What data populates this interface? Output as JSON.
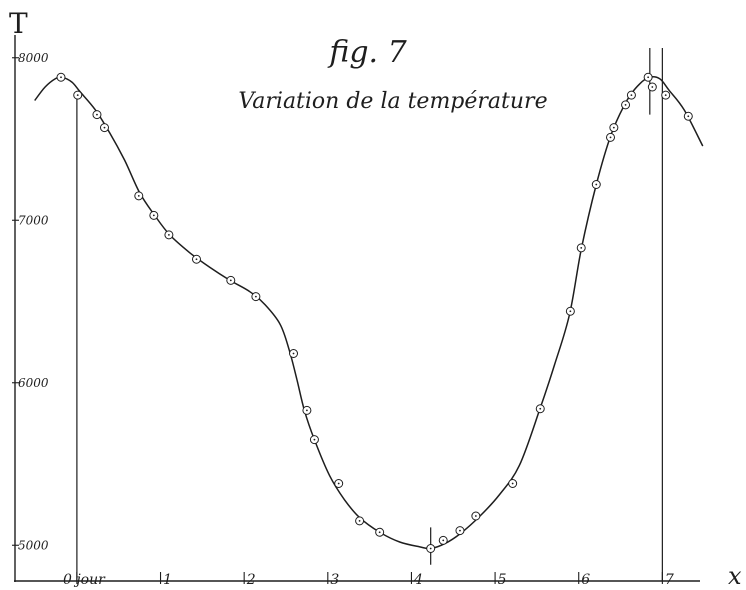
{
  "chart_data": {
    "type": "line",
    "title": "fig. 7",
    "subtitle": "Variation de la température",
    "ylabel": "T",
    "xlabel": "x",
    "xlim": [
      -0.74,
      7.45
    ],
    "ylim": [
      4780,
      8140
    ],
    "grid": false,
    "x_ticks": [
      {
        "value": 0,
        "label": "0 jour"
      },
      {
        "value": 1,
        "label": "1"
      },
      {
        "value": 2,
        "label": "2"
      },
      {
        "value": 3,
        "label": "3"
      },
      {
        "value": 4,
        "label": "4"
      },
      {
        "value": 5,
        "label": "5"
      },
      {
        "value": 6,
        "label": "6"
      },
      {
        "value": 7,
        "label": "7"
      }
    ],
    "y_ticks": [
      {
        "value": 5000,
        "label": "5000"
      },
      {
        "value": 6000,
        "label": "6000"
      },
      {
        "value": 7000,
        "label": "7000"
      },
      {
        "value": 8000,
        "label": "8000"
      }
    ],
    "points": [
      [
        -0.19,
        7880
      ],
      [
        0.01,
        7770
      ],
      [
        0.24,
        7650
      ],
      [
        0.33,
        7570
      ],
      [
        0.74,
        7150
      ],
      [
        0.92,
        7030
      ],
      [
        1.1,
        6910
      ],
      [
        1.43,
        6760
      ],
      [
        1.84,
        6630
      ],
      [
        2.14,
        6530
      ],
      [
        2.59,
        6180
      ],
      [
        2.75,
        5830
      ],
      [
        2.84,
        5650
      ],
      [
        3.13,
        5380
      ],
      [
        3.38,
        5150
      ],
      [
        3.62,
        5080
      ],
      [
        4.23,
        4980
      ],
      [
        4.38,
        5030
      ],
      [
        4.58,
        5090
      ],
      [
        4.77,
        5180
      ],
      [
        5.21,
        5380
      ],
      [
        5.54,
        5840
      ],
      [
        5.9,
        6440
      ],
      [
        6.03,
        6830
      ],
      [
        6.21,
        7220
      ],
      [
        6.38,
        7510
      ],
      [
        6.42,
        7570
      ],
      [
        6.56,
        7710
      ],
      [
        6.63,
        7770
      ],
      [
        6.83,
        7880
      ],
      [
        6.88,
        7820
      ],
      [
        7.04,
        7770
      ],
      [
        7.31,
        7640
      ]
    ],
    "curve": [
      [
        -0.5,
        7740
      ],
      [
        -0.38,
        7820
      ],
      [
        -0.26,
        7870
      ],
      [
        -0.18,
        7880
      ],
      [
        -0.06,
        7850
      ],
      [
        0.04,
        7790
      ],
      [
        0.22,
        7680
      ],
      [
        0.39,
        7540
      ],
      [
        0.57,
        7370
      ],
      [
        0.75,
        7170
      ],
      [
        0.93,
        7030
      ],
      [
        1.11,
        6910
      ],
      [
        1.35,
        6800
      ],
      [
        1.59,
        6710
      ],
      [
        1.83,
        6630
      ],
      [
        2.07,
        6560
      ],
      [
        2.25,
        6480
      ],
      [
        2.43,
        6360
      ],
      [
        2.54,
        6200
      ],
      [
        2.63,
        6020
      ],
      [
        2.72,
        5830
      ],
      [
        2.84,
        5650
      ],
      [
        3.02,
        5430
      ],
      [
        3.2,
        5280
      ],
      [
        3.38,
        5170
      ],
      [
        3.62,
        5080
      ],
      [
        3.86,
        5020
      ],
      [
        4.1,
        4990
      ],
      [
        4.23,
        4980
      ],
      [
        4.4,
        5010
      ],
      [
        4.58,
        5070
      ],
      [
        4.82,
        5180
      ],
      [
        5.05,
        5310
      ],
      [
        5.29,
        5490
      ],
      [
        5.53,
        5830
      ],
      [
        5.71,
        6110
      ],
      [
        5.89,
        6420
      ],
      [
        6.03,
        6820
      ],
      [
        6.21,
        7220
      ],
      [
        6.39,
        7530
      ],
      [
        6.58,
        7740
      ],
      [
        6.73,
        7840
      ],
      [
        6.85,
        7880
      ],
      [
        6.97,
        7870
      ],
      [
        7.08,
        7800
      ],
      [
        7.26,
        7680
      ],
      [
        7.48,
        7460
      ]
    ],
    "reference_lines": [
      {
        "x": 0,
        "y": [
          4780,
          7790
        ]
      },
      {
        "x": 4.23,
        "y": [
          4880,
          5110
        ]
      },
      {
        "x": 6.85,
        "y": [
          7650,
          8060
        ]
      },
      {
        "x": 7.0,
        "y": [
          4780,
          8060
        ]
      }
    ],
    "colors": {
      "ink": "#1e1e1e",
      "paper": "#ffffff"
    }
  }
}
